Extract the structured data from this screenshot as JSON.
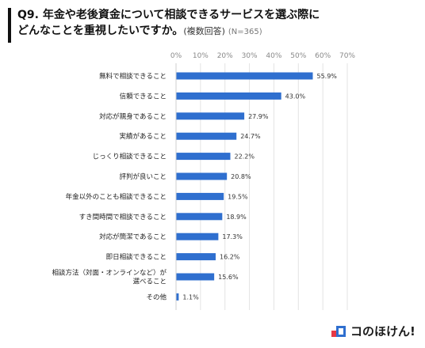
{
  "header": {
    "title_line1": "Q9. 年金や老後資金について相談できるサービスを選ぶ際に",
    "title_line2": "どんなことを重視したいですか。",
    "note": "(複数回答)",
    "sample": "(N=365)"
  },
  "logo": {
    "text": "コのほけん!"
  },
  "chart_data": {
    "type": "bar",
    "orientation": "horizontal",
    "categories": [
      "無料で相談できること",
      "信頼できること",
      "対応が親身であること",
      "実績があること",
      "じっくり相談できること",
      "評判が良いこと",
      "年金以外のことも相談できること",
      "すき間時間で相談できること",
      "対応が簡潔であること",
      "即日相談できること",
      "相談方法（対面・オンラインなど）が\n選べること",
      "その他"
    ],
    "values": [
      55.9,
      43.0,
      27.9,
      24.7,
      22.2,
      20.8,
      19.5,
      18.9,
      17.3,
      16.2,
      15.6,
      1.1
    ],
    "value_labels": [
      "55.9%",
      "43.0%",
      "27.9%",
      "24.7%",
      "22.2%",
      "20.8%",
      "19.5%",
      "18.9%",
      "17.3%",
      "16.2%",
      "15.6%",
      "1.1%"
    ],
    "xlim": [
      0,
      70
    ],
    "tick_labels": [
      "0%",
      "10%",
      "20%",
      "30%",
      "40%",
      "50%",
      "60%",
      "70%"
    ],
    "ticks": [
      0,
      10,
      20,
      30,
      40,
      50,
      60,
      70
    ],
    "grid": true,
    "bar_color": "#2f6fcf",
    "grid_color": "#e3e3e3"
  }
}
